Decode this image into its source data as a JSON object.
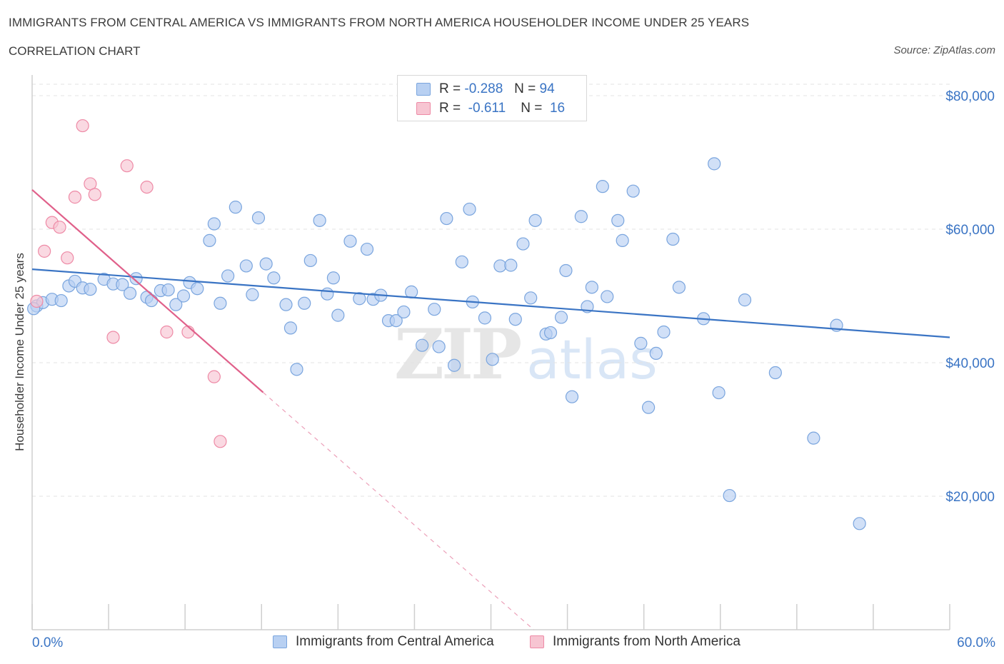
{
  "header": {
    "title": "IMMIGRANTS FROM CENTRAL AMERICA VS IMMIGRANTS FROM NORTH AMERICA HOUSEHOLDER INCOME UNDER 25 YEARS",
    "subtitle": "CORRELATION CHART",
    "source": "Source: ZipAtlas.com"
  },
  "watermark": {
    "zip": "ZIP",
    "atlas": "atlas"
  },
  "legend": {
    "rows": [
      {
        "r_label": "R =",
        "r_value": "-0.288",
        "n_label": "N =",
        "n_value": "94"
      },
      {
        "r_label": "R =",
        "r_value": "-0.611",
        "n_label": "N =",
        "n_value": "16"
      }
    ]
  },
  "colors": {
    "blue_fill": "#b8d0f2",
    "blue_stroke": "#7aa5de",
    "blue_line": "#3a74c4",
    "pink_fill": "#f7c5d2",
    "pink_stroke": "#ee8aa6",
    "pink_line": "#e0608a",
    "grid": "#e3e3e3",
    "axis_text": "#3a74c4"
  },
  "chart_data": {
    "type": "scatter",
    "title": "IMMIGRANTS FROM CENTRAL AMERICA VS IMMIGRANTS FROM NORTH AMERICA HOUSEHOLDER INCOME UNDER 25 YEARS",
    "xlabel": "",
    "ylabel": "Householder Income Under 25 years",
    "xlim": [
      0,
      60
    ],
    "ylim": [
      0,
      80000
    ],
    "x_tick_labels": [
      "0.0%",
      "60.0%"
    ],
    "y_ticks": [
      {
        "value": 20000,
        "label": "$20,000"
      },
      {
        "value": 40000,
        "label": "$40,000"
      },
      {
        "value": 60000,
        "label": "$60,000"
      },
      {
        "value": 80000,
        "label": "$80,000"
      }
    ],
    "series": [
      {
        "name": "Immigrants from Central America",
        "color": "blue",
        "R": -0.288,
        "N": 94,
        "trend": {
          "x0": 0,
          "y0": 54000,
          "x1": 60,
          "y1": 43800,
          "solid_until": 60
        },
        "points": [
          [
            0.3,
            48500
          ],
          [
            0.7,
            49000
          ],
          [
            1.3,
            49500
          ],
          [
            1.9,
            49300
          ],
          [
            2.4,
            51500
          ],
          [
            2.8,
            52200
          ],
          [
            3.3,
            51200
          ],
          [
            3.8,
            51000
          ],
          [
            4.7,
            52500
          ],
          [
            5.3,
            51800
          ],
          [
            5.9,
            51700
          ],
          [
            6.4,
            50400
          ],
          [
            6.8,
            52600
          ],
          [
            7.5,
            49800
          ],
          [
            7.8,
            49300
          ],
          [
            8.4,
            50800
          ],
          [
            8.9,
            50900
          ],
          [
            9.4,
            48700
          ],
          [
            9.9,
            50000
          ],
          [
            10.3,
            52000
          ],
          [
            10.8,
            51100
          ],
          [
            11.6,
            58300
          ],
          [
            11.9,
            60800
          ],
          [
            12.3,
            48900
          ],
          [
            12.8,
            53000
          ],
          [
            13.3,
            63300
          ],
          [
            14.0,
            54500
          ],
          [
            14.4,
            50200
          ],
          [
            14.8,
            61700
          ],
          [
            15.3,
            54800
          ],
          [
            15.8,
            52700
          ],
          [
            16.6,
            48700
          ],
          [
            16.9,
            45200
          ],
          [
            17.3,
            39000
          ],
          [
            17.8,
            48900
          ],
          [
            18.2,
            55300
          ],
          [
            18.8,
            61300
          ],
          [
            19.3,
            50300
          ],
          [
            19.7,
            52700
          ],
          [
            20.0,
            47100
          ],
          [
            20.8,
            58200
          ],
          [
            21.4,
            49600
          ],
          [
            21.9,
            57000
          ],
          [
            22.3,
            49500
          ],
          [
            22.8,
            50100
          ],
          [
            23.3,
            46300
          ],
          [
            23.8,
            46300
          ],
          [
            24.3,
            47600
          ],
          [
            24.8,
            50600
          ],
          [
            25.5,
            42600
          ],
          [
            26.3,
            48000
          ],
          [
            26.6,
            42400
          ],
          [
            27.1,
            61600
          ],
          [
            27.6,
            39600
          ],
          [
            28.1,
            55100
          ],
          [
            28.6,
            63000
          ],
          [
            28.8,
            49100
          ],
          [
            29.6,
            46700
          ],
          [
            30.1,
            40500
          ],
          [
            30.6,
            54500
          ],
          [
            31.3,
            54600
          ],
          [
            31.6,
            46500
          ],
          [
            32.1,
            57800
          ],
          [
            32.6,
            49700
          ],
          [
            32.9,
            61300
          ],
          [
            33.6,
            44300
          ],
          [
            33.9,
            44500
          ],
          [
            34.6,
            46800
          ],
          [
            34.9,
            53800
          ],
          [
            35.3,
            34900
          ],
          [
            35.9,
            61900
          ],
          [
            36.3,
            48400
          ],
          [
            36.6,
            51300
          ],
          [
            37.3,
            66400
          ],
          [
            37.6,
            49900
          ],
          [
            38.3,
            61300
          ],
          [
            38.6,
            58300
          ],
          [
            39.3,
            65700
          ],
          [
            39.8,
            42900
          ],
          [
            40.8,
            41400
          ],
          [
            40.3,
            33300
          ],
          [
            41.3,
            44600
          ],
          [
            41.9,
            58500
          ],
          [
            42.3,
            51300
          ],
          [
            43.9,
            46600
          ],
          [
            44.6,
            69800
          ],
          [
            44.9,
            35500
          ],
          [
            45.6,
            20100
          ],
          [
            46.6,
            49400
          ],
          [
            48.6,
            38500
          ],
          [
            51.1,
            28700
          ],
          [
            52.6,
            45600
          ],
          [
            54.1,
            15900
          ],
          [
            0.1,
            48100
          ]
        ]
      },
      {
        "name": "Immigrants from North America",
        "color": "pink",
        "R": -0.611,
        "N": 16,
        "trend": {
          "x0": 0,
          "y0": 65900,
          "x1": 32.8,
          "y1": 0,
          "solid_until": 15.1
        },
        "points": [
          [
            0.3,
            49200
          ],
          [
            0.8,
            56700
          ],
          [
            1.3,
            61000
          ],
          [
            1.8,
            60300
          ],
          [
            2.3,
            55700
          ],
          [
            2.8,
            64800
          ],
          [
            3.3,
            75500
          ],
          [
            3.8,
            66800
          ],
          [
            4.1,
            65200
          ],
          [
            5.3,
            43800
          ],
          [
            6.2,
            69500
          ],
          [
            7.5,
            66300
          ],
          [
            8.8,
            44600
          ],
          [
            10.2,
            44600
          ],
          [
            11.9,
            37900
          ],
          [
            12.3,
            28200
          ]
        ]
      }
    ],
    "legend_position": "top-center"
  },
  "bottom_legend": {
    "items": [
      {
        "label": "Immigrants from Central America"
      },
      {
        "label": "Immigrants from North America"
      }
    ]
  }
}
